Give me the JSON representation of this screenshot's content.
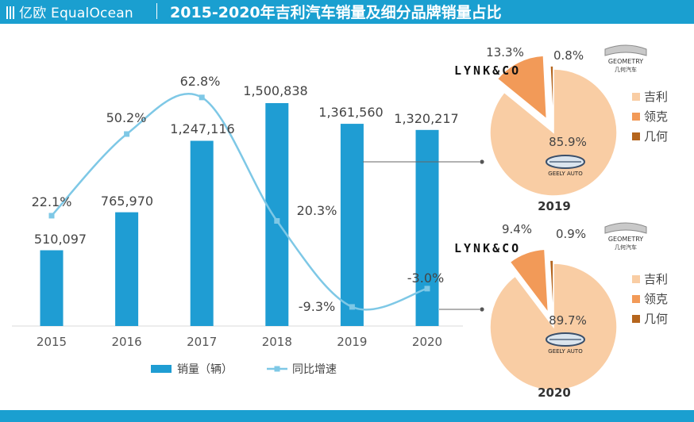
{
  "header": {
    "logo_text": "亿欧 EqualOcean",
    "title": "2015-2020年吉利汽车销量及细分品牌销量占比"
  },
  "colors": {
    "header_bg": "#1a9fd0",
    "bar": "#1f9dd3",
    "line": "#7ec8e6",
    "geely": "#f9cda4",
    "lynk": "#f29a58",
    "geometry": "#b5651d"
  },
  "chart_data": [
    {
      "type": "bar",
      "title": "",
      "categories": [
        "2015",
        "2016",
        "2017",
        "2018",
        "2019",
        "2020"
      ],
      "series": [
        {
          "name": "销量（辆）",
          "type": "bar",
          "values": [
            510097,
            765970,
            1247116,
            1500838,
            1361560,
            1320217
          ],
          "labels": [
            "510,097",
            "765,970",
            "1,247,116",
            "1,500,838",
            "1,361,560",
            "1,320,217"
          ]
        },
        {
          "name": "同比增速",
          "type": "line",
          "unit": "%",
          "values": [
            22.1,
            50.2,
            62.8,
            20.3,
            -9.3,
            -3.0
          ],
          "labels": [
            "22.1%",
            "50.2%",
            "62.8%",
            "20.3%",
            "-9.3%",
            "-3.0%"
          ]
        }
      ],
      "legend": [
        "销量（辆）",
        "同比增速"
      ],
      "legend_position": "bottom"
    },
    {
      "type": "pie",
      "title": "2019",
      "slices": [
        {
          "name": "吉利",
          "value": 85.9,
          "label": "85.9%"
        },
        {
          "name": "领克",
          "value": 13.3,
          "label": "13.3%"
        },
        {
          "name": "几何",
          "value": 0.8,
          "label": "0.8%"
        }
      ]
    },
    {
      "type": "pie",
      "title": "2020",
      "slices": [
        {
          "name": "吉利",
          "value": 89.7,
          "label": "89.7%"
        },
        {
          "name": "领克",
          "value": 9.4,
          "label": "9.4%"
        },
        {
          "name": "几何",
          "value": 0.9,
          "label": "0.9%"
        }
      ]
    }
  ],
  "brand_logos": {
    "lynk": "LYNK&CO",
    "geometry": "GEOMETRY",
    "geometry_cn": "几何汽车",
    "geely": "GEELY AUTO"
  }
}
